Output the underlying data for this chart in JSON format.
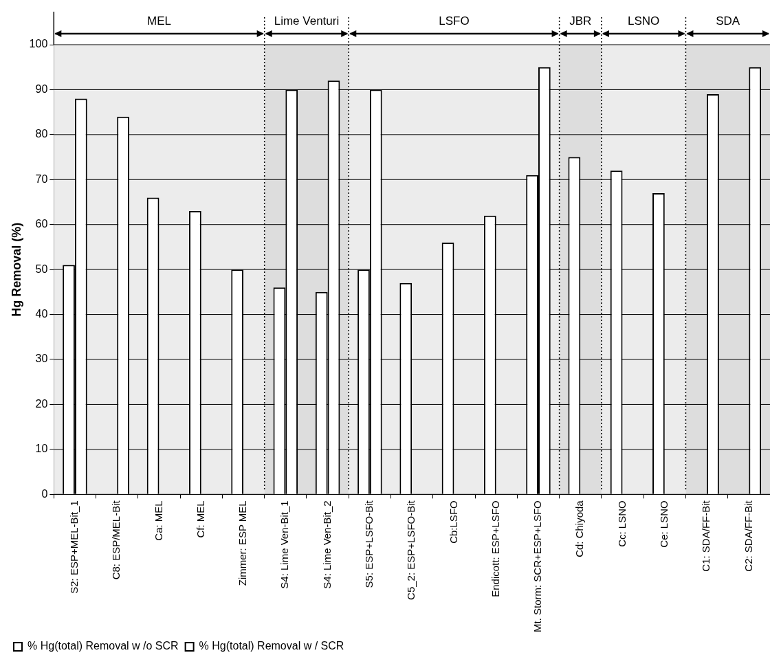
{
  "chart_data": {
    "type": "bar",
    "ylabel": "Hg Removal (%)",
    "categories": [
      "S2: ESP+MEL-Bit_1",
      "C8: ESP/MEL-Bit",
      "Ca: MEL",
      "Cf: MEL",
      "Zimmer: ESP MEL",
      "S4: Lime Ven-Bit_1",
      "S4: Lime Ven-Bit_2",
      "S5: ESP+LSFO-Bit",
      "C5_2: ESP+LSFO-Bit",
      "Cb:LSFO",
      "Endicott: ESP+LSFO",
      "Mt. Storm: SCR+ESP+LSFO",
      "Cd: Chiyoda",
      "Cc: LSNO",
      "Ce: LSNO",
      "C1: SDA/FF-Bit",
      "C2: SDA/FF-Bit"
    ],
    "series": [
      {
        "name": "% Hg(total) Removal w /o SCR",
        "color": "#ffffff",
        "values": [
          51,
          null,
          66,
          63,
          50,
          46,
          45,
          50,
          47,
          56,
          62,
          71,
          75,
          72,
          67,
          null,
          null
        ]
      },
      {
        "name": "% Hg(total) Removal w / SCR",
        "color": "#ffffff",
        "values": [
          88,
          84,
          null,
          null,
          null,
          90,
          92,
          90,
          null,
          null,
          null,
          95,
          null,
          null,
          null,
          89,
          95
        ]
      }
    ],
    "ylim": [
      0,
      100
    ],
    "yticks": [
      0,
      10,
      20,
      30,
      40,
      50,
      60,
      70,
      80,
      90,
      100
    ],
    "grid": "y",
    "legend": "bottom left",
    "bands": [
      {
        "axis": "x",
        "from": "S2: ESP+MEL-Bit_1",
        "to": "Zimmer: ESP MEL",
        "label": "MEL",
        "color": "#ececec"
      },
      {
        "axis": "x",
        "from": "S4: Lime Ven-Bit_1",
        "to": "S4: Lime Ven-Bit_2",
        "label": "Lime Venturi",
        "color": "#dddddd"
      },
      {
        "axis": "x",
        "from": "S5: ESP+LSFO-Bit",
        "to": "Mt. Storm: SCR+ESP+LSFO",
        "label": "LSFO",
        "color": "#ececec"
      },
      {
        "axis": "x",
        "from": "Cd: Chiyoda",
        "to": "Cd: Chiyoda",
        "label": "JBR",
        "color": "#dddddd"
      },
      {
        "axis": "x",
        "from": "Cc: LSNO",
        "to": "Ce: LSNO",
        "label": "LSNO",
        "color": "#ececec"
      },
      {
        "axis": "x",
        "from": "C1: SDA/FF-Bit",
        "to": "C2: SDA/FF-Bit",
        "label": "SDA",
        "color": "#dddddd"
      }
    ]
  }
}
